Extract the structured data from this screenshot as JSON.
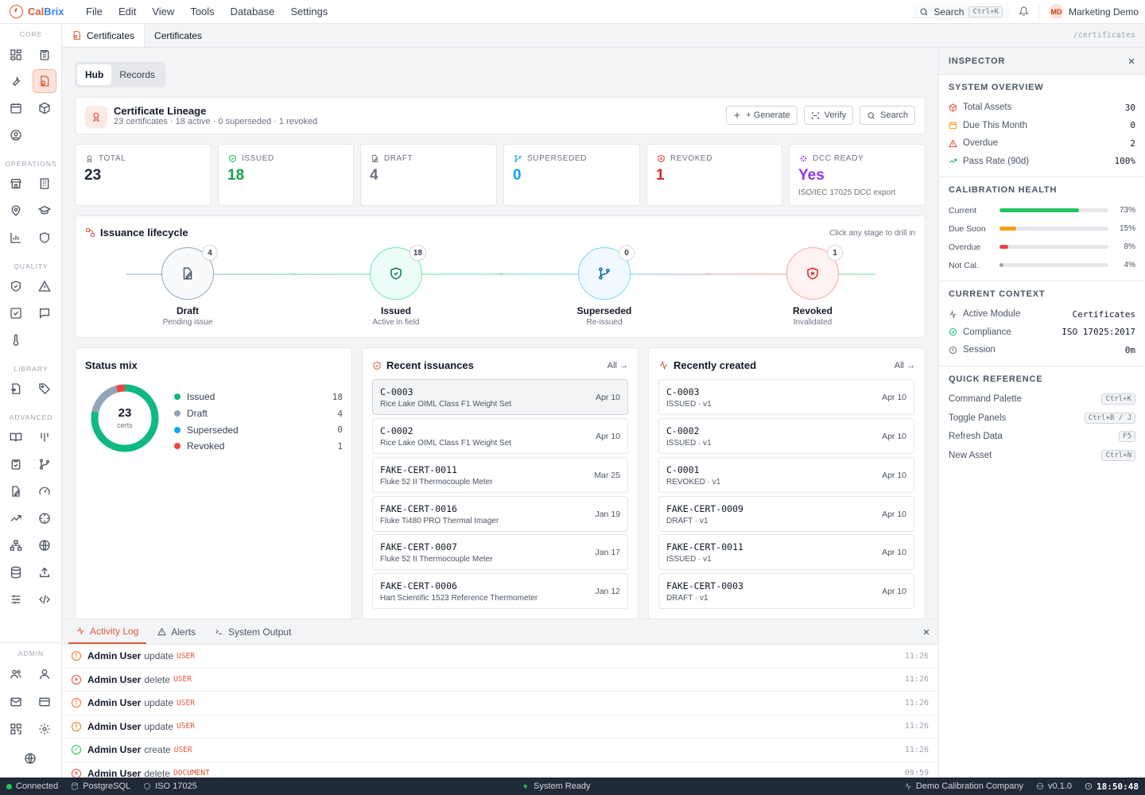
{
  "app": {
    "name_part1": "Cal",
    "name_part2": "Brix"
  },
  "menu": [
    "File",
    "Edit",
    "View",
    "Tools",
    "Database",
    "Settings"
  ],
  "topbar": {
    "search_label": "Search",
    "search_kbd": "Ctrl+K",
    "user_initials": "MD",
    "user_name": "Marketing Demo"
  },
  "rail": {
    "sections": [
      "CORE",
      "OPERATIONS",
      "QUALITY",
      "LIBRARY",
      "ADVANCED",
      "ADMIN"
    ]
  },
  "tabs": {
    "breadcrumb": "Certificates",
    "active": "Certificates",
    "route": "/certificates"
  },
  "view_toggle": {
    "hub": "Hub",
    "records": "Records"
  },
  "lineage": {
    "title": "Certificate Lineage",
    "subtitle": "23 certificates · 18 active · 0 superseded · 1 revoked",
    "generate": "+ Generate",
    "verify": "Verify",
    "search": "Search"
  },
  "stats": [
    {
      "label": "TOTAL",
      "value": "23",
      "color": "#1f2937",
      "icon": "award-icon"
    },
    {
      "label": "ISSUED",
      "value": "18",
      "color": "#16a34a",
      "icon": "shield-check-icon"
    },
    {
      "label": "DRAFT",
      "value": "4",
      "color": "#6b7280",
      "icon": "file-edit-icon"
    },
    {
      "label": "SUPERSEDED",
      "value": "0",
      "color": "#0ea5e9",
      "icon": "branch-icon"
    },
    {
      "label": "REVOKED",
      "value": "1",
      "color": "#dc2626",
      "icon": "shield-x-icon"
    },
    {
      "label": "DCC READY",
      "value": "Yes",
      "sub": "ISO/IEC 17025 DCC export",
      "color": "#9333ea",
      "icon": "sparkle-icon"
    }
  ],
  "lifecycle": {
    "title": "Issuance lifecycle",
    "hint": "Click any stage to drill in",
    "stages": [
      {
        "name": "Draft",
        "desc": "Pending issue",
        "count": "4",
        "color": "#94a3b8"
      },
      {
        "name": "Issued",
        "desc": "Active in field",
        "count": "18",
        "color": "#10b981"
      },
      {
        "name": "Superseded",
        "desc": "Re-issued",
        "count": "0",
        "color": "#38bdf8"
      },
      {
        "name": "Revoked",
        "desc": "Invalidated",
        "count": "1",
        "color": "#f87171"
      }
    ]
  },
  "status_mix": {
    "title": "Status mix",
    "total": "23",
    "unit": "certs",
    "items": [
      {
        "label": "Issued",
        "value": 18,
        "color": "#10b981"
      },
      {
        "label": "Draft",
        "value": 4,
        "color": "#94a3b8"
      },
      {
        "label": "Superseded",
        "value": 0,
        "color": "#0ea5e9"
      },
      {
        "label": "Revoked",
        "value": 1,
        "color": "#ef4444"
      }
    ]
  },
  "recent_issuances": {
    "title": "Recent issuances",
    "all": "All",
    "items": [
      {
        "id": "C-0003",
        "desc": "Rice Lake OIML Class F1 Weight Set",
        "date": "Apr 10"
      },
      {
        "id": "C-0002",
        "desc": "Rice Lake OIML Class F1 Weight Set",
        "date": "Apr 10"
      },
      {
        "id": "FAKE-CERT-0011",
        "desc": "Fluke 52 II Thermocouple Meter",
        "date": "Mar 25"
      },
      {
        "id": "FAKE-CERT-0016",
        "desc": "Fluke Ti480 PRO Thermal Imager",
        "date": "Jan 19"
      },
      {
        "id": "FAKE-CERT-0007",
        "desc": "Fluke 52 II Thermocouple Meter",
        "date": "Jan 17"
      },
      {
        "id": "FAKE-CERT-0006",
        "desc": "Hart Scientific 1523 Reference Thermometer",
        "date": "Jan 12"
      }
    ]
  },
  "recently_created": {
    "title": "Recently created",
    "all": "All",
    "items": [
      {
        "id": "C-0003",
        "desc": "ISSUED · v1",
        "date": "Apr 10"
      },
      {
        "id": "C-0002",
        "desc": "ISSUED · v1",
        "date": "Apr 10"
      },
      {
        "id": "C-0001",
        "desc": "REVOKED · v1",
        "date": "Apr 10"
      },
      {
        "id": "FAKE-CERT-0009",
        "desc": "DRAFT · v1",
        "date": "Apr 10"
      },
      {
        "id": "FAKE-CERT-0011",
        "desc": "ISSUED · v1",
        "date": "Apr 10"
      },
      {
        "id": "FAKE-CERT-0003",
        "desc": "DRAFT · v1",
        "date": "Apr 10"
      }
    ]
  },
  "dock": {
    "tabs": [
      "Activity Log",
      "Alerts",
      "System Output"
    ],
    "log": [
      {
        "user": "Admin User",
        "action": "update",
        "entity": "USER",
        "time": "11:26",
        "level": "warn"
      },
      {
        "user": "Admin User",
        "action": "delete",
        "entity": "USER",
        "time": "11:26",
        "level": "error"
      },
      {
        "user": "Admin User",
        "action": "update",
        "entity": "USER",
        "time": "11:26",
        "level": "warn"
      },
      {
        "user": "Admin User",
        "action": "update",
        "entity": "USER",
        "time": "11:26",
        "level": "warn"
      },
      {
        "user": "Admin User",
        "action": "create",
        "entity": "USER",
        "time": "11:26",
        "level": "ok"
      },
      {
        "user": "Admin User",
        "action": "delete",
        "entity": "DOCUMENT",
        "time": "09:59",
        "level": "error"
      }
    ]
  },
  "inspector": {
    "title": "INSPECTOR",
    "overview": {
      "title": "SYSTEM OVERVIEW",
      "rows": [
        {
          "label": "Total Assets",
          "value": "30",
          "icon": "box-icon",
          "color": "#e05a3a"
        },
        {
          "label": "Due This Month",
          "value": "0",
          "icon": "calendar-icon",
          "color": "#f59e0b"
        },
        {
          "label": "Overdue",
          "value": "2",
          "icon": "alert-triangle-icon",
          "color": "#ef4444"
        },
        {
          "label": "Pass Rate (90d)",
          "value": "100%",
          "icon": "trend-up-icon",
          "color": "#10b981"
        }
      ]
    },
    "health": {
      "title": "CALIBRATION HEALTH",
      "rows": [
        {
          "label": "Current",
          "pct": "73%",
          "fill": 0.73,
          "color": "#22c55e"
        },
        {
          "label": "Due Soon",
          "pct": "15%",
          "fill": 0.15,
          "color": "#f59e0b"
        },
        {
          "label": "Overdue",
          "pct": "8%",
          "fill": 0.08,
          "color": "#ef4444"
        },
        {
          "label": "Not Cal.",
          "pct": "4%",
          "fill": 0.04,
          "color": "#9ca3af"
        }
      ]
    },
    "context": {
      "title": "CURRENT CONTEXT",
      "rows": [
        {
          "label": "Active Module",
          "value": "Certificates",
          "icon": "activity-icon",
          "color": "#6b7280"
        },
        {
          "label": "Compliance",
          "value": "ISO 17025:2017",
          "icon": "check-circle-icon",
          "color": "#10b981"
        },
        {
          "label": "Session",
          "value": "0m",
          "icon": "clock-icon",
          "color": "#6b7280"
        }
      ]
    },
    "reference": {
      "title": "QUICK REFERENCE",
      "rows": [
        {
          "label": "Command Palette",
          "key": "Ctrl+K"
        },
        {
          "label": "Toggle Panels",
          "key": "Ctrl+B / J"
        },
        {
          "label": "Refresh Data",
          "key": "F5"
        },
        {
          "label": "New Asset",
          "key": "Ctrl+N"
        }
      ]
    }
  },
  "statusbar": {
    "connected": "Connected",
    "db": "PostgreSQL",
    "iso": "ISO 17025",
    "ready": "System Ready",
    "company": "Demo Calibration Company",
    "version": "v0.1.0",
    "time": "18:50:48"
  }
}
